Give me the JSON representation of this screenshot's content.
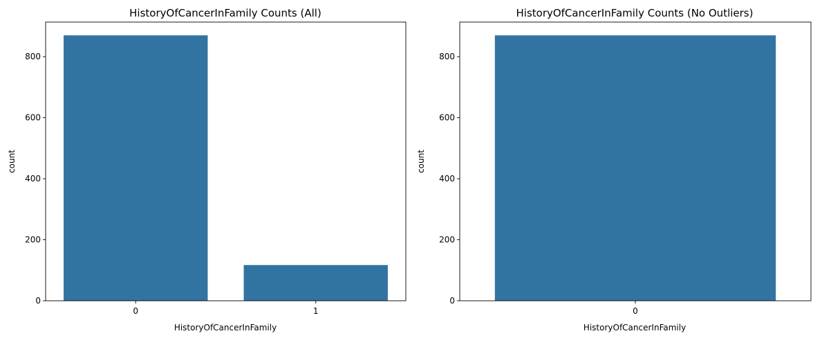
{
  "chart_data": [
    {
      "type": "bar",
      "title": "HistoryOfCancerInFamily Counts (All)",
      "xlabel": "HistoryOfCancerInFamily",
      "ylabel": "count",
      "categories": [
        "0",
        "1"
      ],
      "values": [
        870,
        117
      ],
      "ylim": [
        0,
        913.5
      ],
      "yticks": [
        0,
        200,
        400,
        600,
        800
      ],
      "bar_color": "#3274a1",
      "grid": false,
      "legend": false
    },
    {
      "type": "bar",
      "title": "HistoryOfCancerInFamily Counts (No Outliers)",
      "xlabel": "HistoryOfCancerInFamily",
      "ylabel": "count",
      "categories": [
        "0"
      ],
      "values": [
        870
      ],
      "ylim": [
        0,
        913.5
      ],
      "yticks": [
        0,
        200,
        400,
        600,
        800
      ],
      "bar_color": "#3274a1",
      "grid": false,
      "legend": false
    }
  ]
}
